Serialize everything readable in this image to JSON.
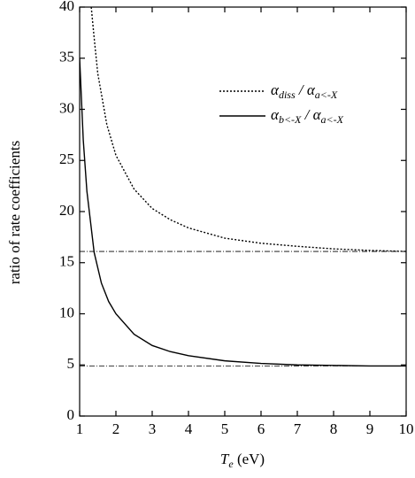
{
  "chart_data": {
    "type": "line",
    "y_label": "ratio of rate coefficients",
    "x_label": [
      {
        "text": "T"
      },
      {
        "sub": "e"
      },
      {
        "text": " (eV)"
      }
    ],
    "xlim": [
      1,
      10
    ],
    "xticks": [
      1,
      2,
      3,
      4,
      5,
      6,
      7,
      8,
      9,
      10
    ],
    "ylim": [
      0,
      40
    ],
    "yticks": [
      0,
      5,
      10,
      15,
      20,
      25,
      30,
      35,
      40
    ],
    "reference_lines": [
      16.1,
      4.9
    ],
    "series": [
      {
        "name": [
          {
            "text": "α"
          },
          {
            "sub": "diss"
          },
          {
            "text": " / α"
          },
          {
            "sub": "a<-X"
          }
        ],
        "color": "#000",
        "dash": "dotted",
        "x": [
          1.32,
          1.4,
          1.5,
          1.75,
          2,
          2.5,
          3,
          3.5,
          4,
          5,
          6,
          7,
          8,
          9,
          10
        ],
        "values": [
          40,
          37,
          33.5,
          28.5,
          25.5,
          22.2,
          20.3,
          19.2,
          18.4,
          17.4,
          16.9,
          16.6,
          16.35,
          16.2,
          16.1
        ]
      },
      {
        "name": [
          {
            "text": "α"
          },
          {
            "sub": "b<-X"
          },
          {
            "text": " / α"
          },
          {
            "sub": "a<-X"
          }
        ],
        "color": "#000",
        "dash": "solid",
        "x": [
          1,
          1.1,
          1.2,
          1.4,
          1.6,
          1.8,
          2,
          2.5,
          3,
          3.5,
          4,
          5,
          6,
          7,
          8,
          9,
          10
        ],
        "values": [
          35,
          27,
          22,
          16,
          13,
          11.2,
          10,
          8,
          6.9,
          6.3,
          5.9,
          5.4,
          5.15,
          5.0,
          4.95,
          4.9,
          4.9
        ]
      }
    ]
  }
}
